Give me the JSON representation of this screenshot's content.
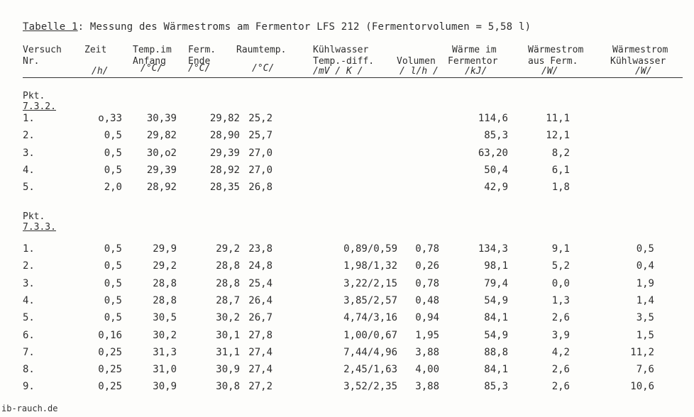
{
  "title": {
    "label": "Tabelle 1",
    "text": ": Messung des Wärmestroms am Fermentor LFS 212  (Fermentorvolumen = 5,58 l)"
  },
  "columns": [
    {
      "key": "nr",
      "line1": "Versuch",
      "line2": "Nr.",
      "unit": ""
    },
    {
      "key": "zeit",
      "line1": "Zeit",
      "line2": "",
      "unit": "/h/"
    },
    {
      "key": "t_anf",
      "line1": "Temp.im",
      "line2": "Anfang",
      "unit": "/°C/"
    },
    {
      "key": "t_end",
      "line1": "Ferm.",
      "line2": "Ende",
      "unit": "/°C/"
    },
    {
      "key": "raum",
      "line1": "Raumtemp.",
      "line2": "",
      "unit": "/°C/"
    },
    {
      "key": "kw",
      "line1": "Kühlwasser",
      "line2": "Temp.-diff.",
      "unit": "/mV / K /"
    },
    {
      "key": "vol",
      "line1": "",
      "line2": "Volumen",
      "unit": "/ l/h /"
    },
    {
      "key": "waerme",
      "line1": "Wärme im",
      "line2": "Fermentor",
      "unit": "/kJ/"
    },
    {
      "key": "ws_ferm",
      "line1": "Wärmestrom",
      "line2": "aus Ferm.",
      "unit": "/W/"
    },
    {
      "key": "ws_kw",
      "line1": "Wärmestrom",
      "line2": "Kühlwasser",
      "unit": "/W/"
    }
  ],
  "sections": [
    {
      "label1": "Pkt.",
      "label2": "7.3.2.",
      "rows": [
        {
          "nr": "1.",
          "zeit": "o,33",
          "t_anf": "30,39",
          "t_end": "29,82",
          "raum": "25,2",
          "kw": "",
          "vol": "",
          "waerme": "114,6",
          "ws_ferm": "11,1",
          "ws_kw": ""
        },
        {
          "nr": "2.",
          "zeit": "0,5",
          "t_anf": "29,82",
          "t_end": "28,90",
          "raum": "25,7",
          "kw": "",
          "vol": "",
          "waerme": "85,3",
          "ws_ferm": "12,1",
          "ws_kw": ""
        },
        {
          "nr": "3.",
          "zeit": "0,5",
          "t_anf": "30,o2",
          "t_end": "29,39",
          "raum": "27,0",
          "kw": "",
          "vol": "",
          "waerme": "63,20",
          "ws_ferm": "8,2",
          "ws_kw": ""
        },
        {
          "nr": "4.",
          "zeit": "0,5",
          "t_anf": "29,39",
          "t_end": "28,92",
          "raum": "27,0",
          "kw": "",
          "vol": "",
          "waerme": "50,4",
          "ws_ferm": "6,1",
          "ws_kw": ""
        },
        {
          "nr": "5.",
          "zeit": "2,0",
          "t_anf": "28,92",
          "t_end": "28,35",
          "raum": "26,8",
          "kw": "",
          "vol": "",
          "waerme": "42,9",
          "ws_ferm": "1,8",
          "ws_kw": ""
        }
      ]
    },
    {
      "label1": "Pkt.",
      "label2": "7.3.3.",
      "rows": [
        {
          "nr": "1.",
          "zeit": "0,5",
          "t_anf": "29,9",
          "t_end": "29,2",
          "raum": "23,8",
          "kw": "0,89/0,59",
          "vol": "0,78",
          "waerme": "134,3",
          "ws_ferm": "9,1",
          "ws_kw": "0,5"
        },
        {
          "nr": "2.",
          "zeit": "0,5",
          "t_anf": "29,2",
          "t_end": "28,8",
          "raum": "24,8",
          "kw": "1,98/1,32",
          "vol": "0,26",
          "waerme": "98,1",
          "ws_ferm": "5,2",
          "ws_kw": "0,4"
        },
        {
          "nr": "3.",
          "zeit": "0,5",
          "t_anf": "28,8",
          "t_end": "28,8",
          "raum": "25,4",
          "kw": "3,22/2,15",
          "vol": "0,78",
          "waerme": "79,4",
          "ws_ferm": "0,0",
          "ws_kw": "1,9"
        },
        {
          "nr": "4.",
          "zeit": "0,5",
          "t_anf": "28,8",
          "t_end": "28,7",
          "raum": "26,4",
          "kw": "3,85/2,57",
          "vol": "0,48",
          "waerme": "54,9",
          "ws_ferm": "1,3",
          "ws_kw": "1,4"
        },
        {
          "nr": "5.",
          "zeit": "0,5",
          "t_anf": "30,5",
          "t_end": "30,2",
          "raum": "26,7",
          "kw": "4,74/3,16",
          "vol": "0,94",
          "waerme": "84,1",
          "ws_ferm": "2,6",
          "ws_kw": "3,5"
        },
        {
          "nr": "6.",
          "zeit": "0,16",
          "t_anf": "30,2",
          "t_end": "30,1",
          "raum": "27,8",
          "kw": "1,00/0,67",
          "vol": "1,95",
          "waerme": "54,9",
          "ws_ferm": "3,9",
          "ws_kw": "1,5"
        },
        {
          "nr": "7.",
          "zeit": "0,25",
          "t_anf": "31,3",
          "t_end": "31,1",
          "raum": "27,4",
          "kw": "7,44/4,96",
          "vol": "3,88",
          "waerme": "88,8",
          "ws_ferm": "4,2",
          "ws_kw": "11,2"
        },
        {
          "nr": "8.",
          "zeit": "0,25",
          "t_anf": "31,0",
          "t_end": "30,9",
          "raum": "27,4",
          "kw": "2,45/1,63",
          "vol": "4,00",
          "waerme": "84,1",
          "ws_ferm": "2,6",
          "ws_kw": "7,6"
        },
        {
          "nr": "9.",
          "zeit": "0,25",
          "t_anf": "30,9",
          "t_end": "30,8",
          "raum": "27,2",
          "kw": "3,52/2,35",
          "vol": "3,88",
          "waerme": "85,3",
          "ws_ferm": "2,6",
          "ws_kw": "10,6"
        }
      ]
    }
  ],
  "footer": "ib-rauch.de"
}
